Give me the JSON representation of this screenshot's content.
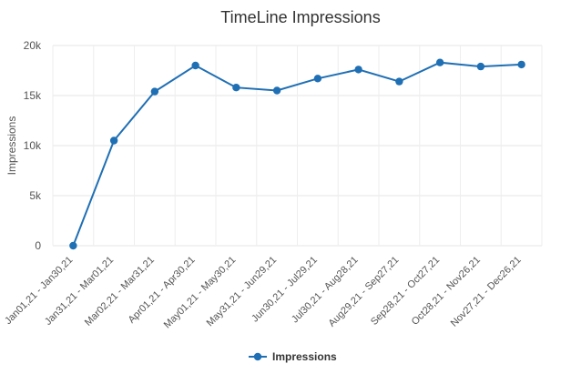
{
  "chart_data": {
    "type": "line",
    "title": "TimeLine Impressions",
    "xlabel": "",
    "ylabel": "Impressions",
    "categories": [
      "Jan01,21 - Jan30,21",
      "Jan31,21 - Mar01,21",
      "Mar02,21 - Mar31,21",
      "Apr01,21 - Apr30,21",
      "May01,21 - May30,21",
      "May31,21 - Jun29,21",
      "Jun30,21 - Jul29,21",
      "Jul30,21 - Aug28,21",
      "Aug29,21 - Sep27,21",
      "Sep28,21 - Oct27,21",
      "Oct28,21 - Nov26,21",
      "Nov27,21 - Dec26,21"
    ],
    "series": [
      {
        "name": "Impressions",
        "color": "#1f6fb4",
        "values": [
          0,
          10500,
          15400,
          18000,
          15800,
          15500,
          16700,
          17600,
          16400,
          18300,
          17900,
          18100
        ]
      }
    ],
    "ylim": [
      0,
      20000
    ],
    "yticks": [
      {
        "value": 0,
        "label": "0"
      },
      {
        "value": 5000,
        "label": "5k"
      },
      {
        "value": 10000,
        "label": "10k"
      },
      {
        "value": 15000,
        "label": "15k"
      },
      {
        "value": 20000,
        "label": "20k"
      }
    ],
    "grid": true,
    "legend": "bottom-center"
  }
}
